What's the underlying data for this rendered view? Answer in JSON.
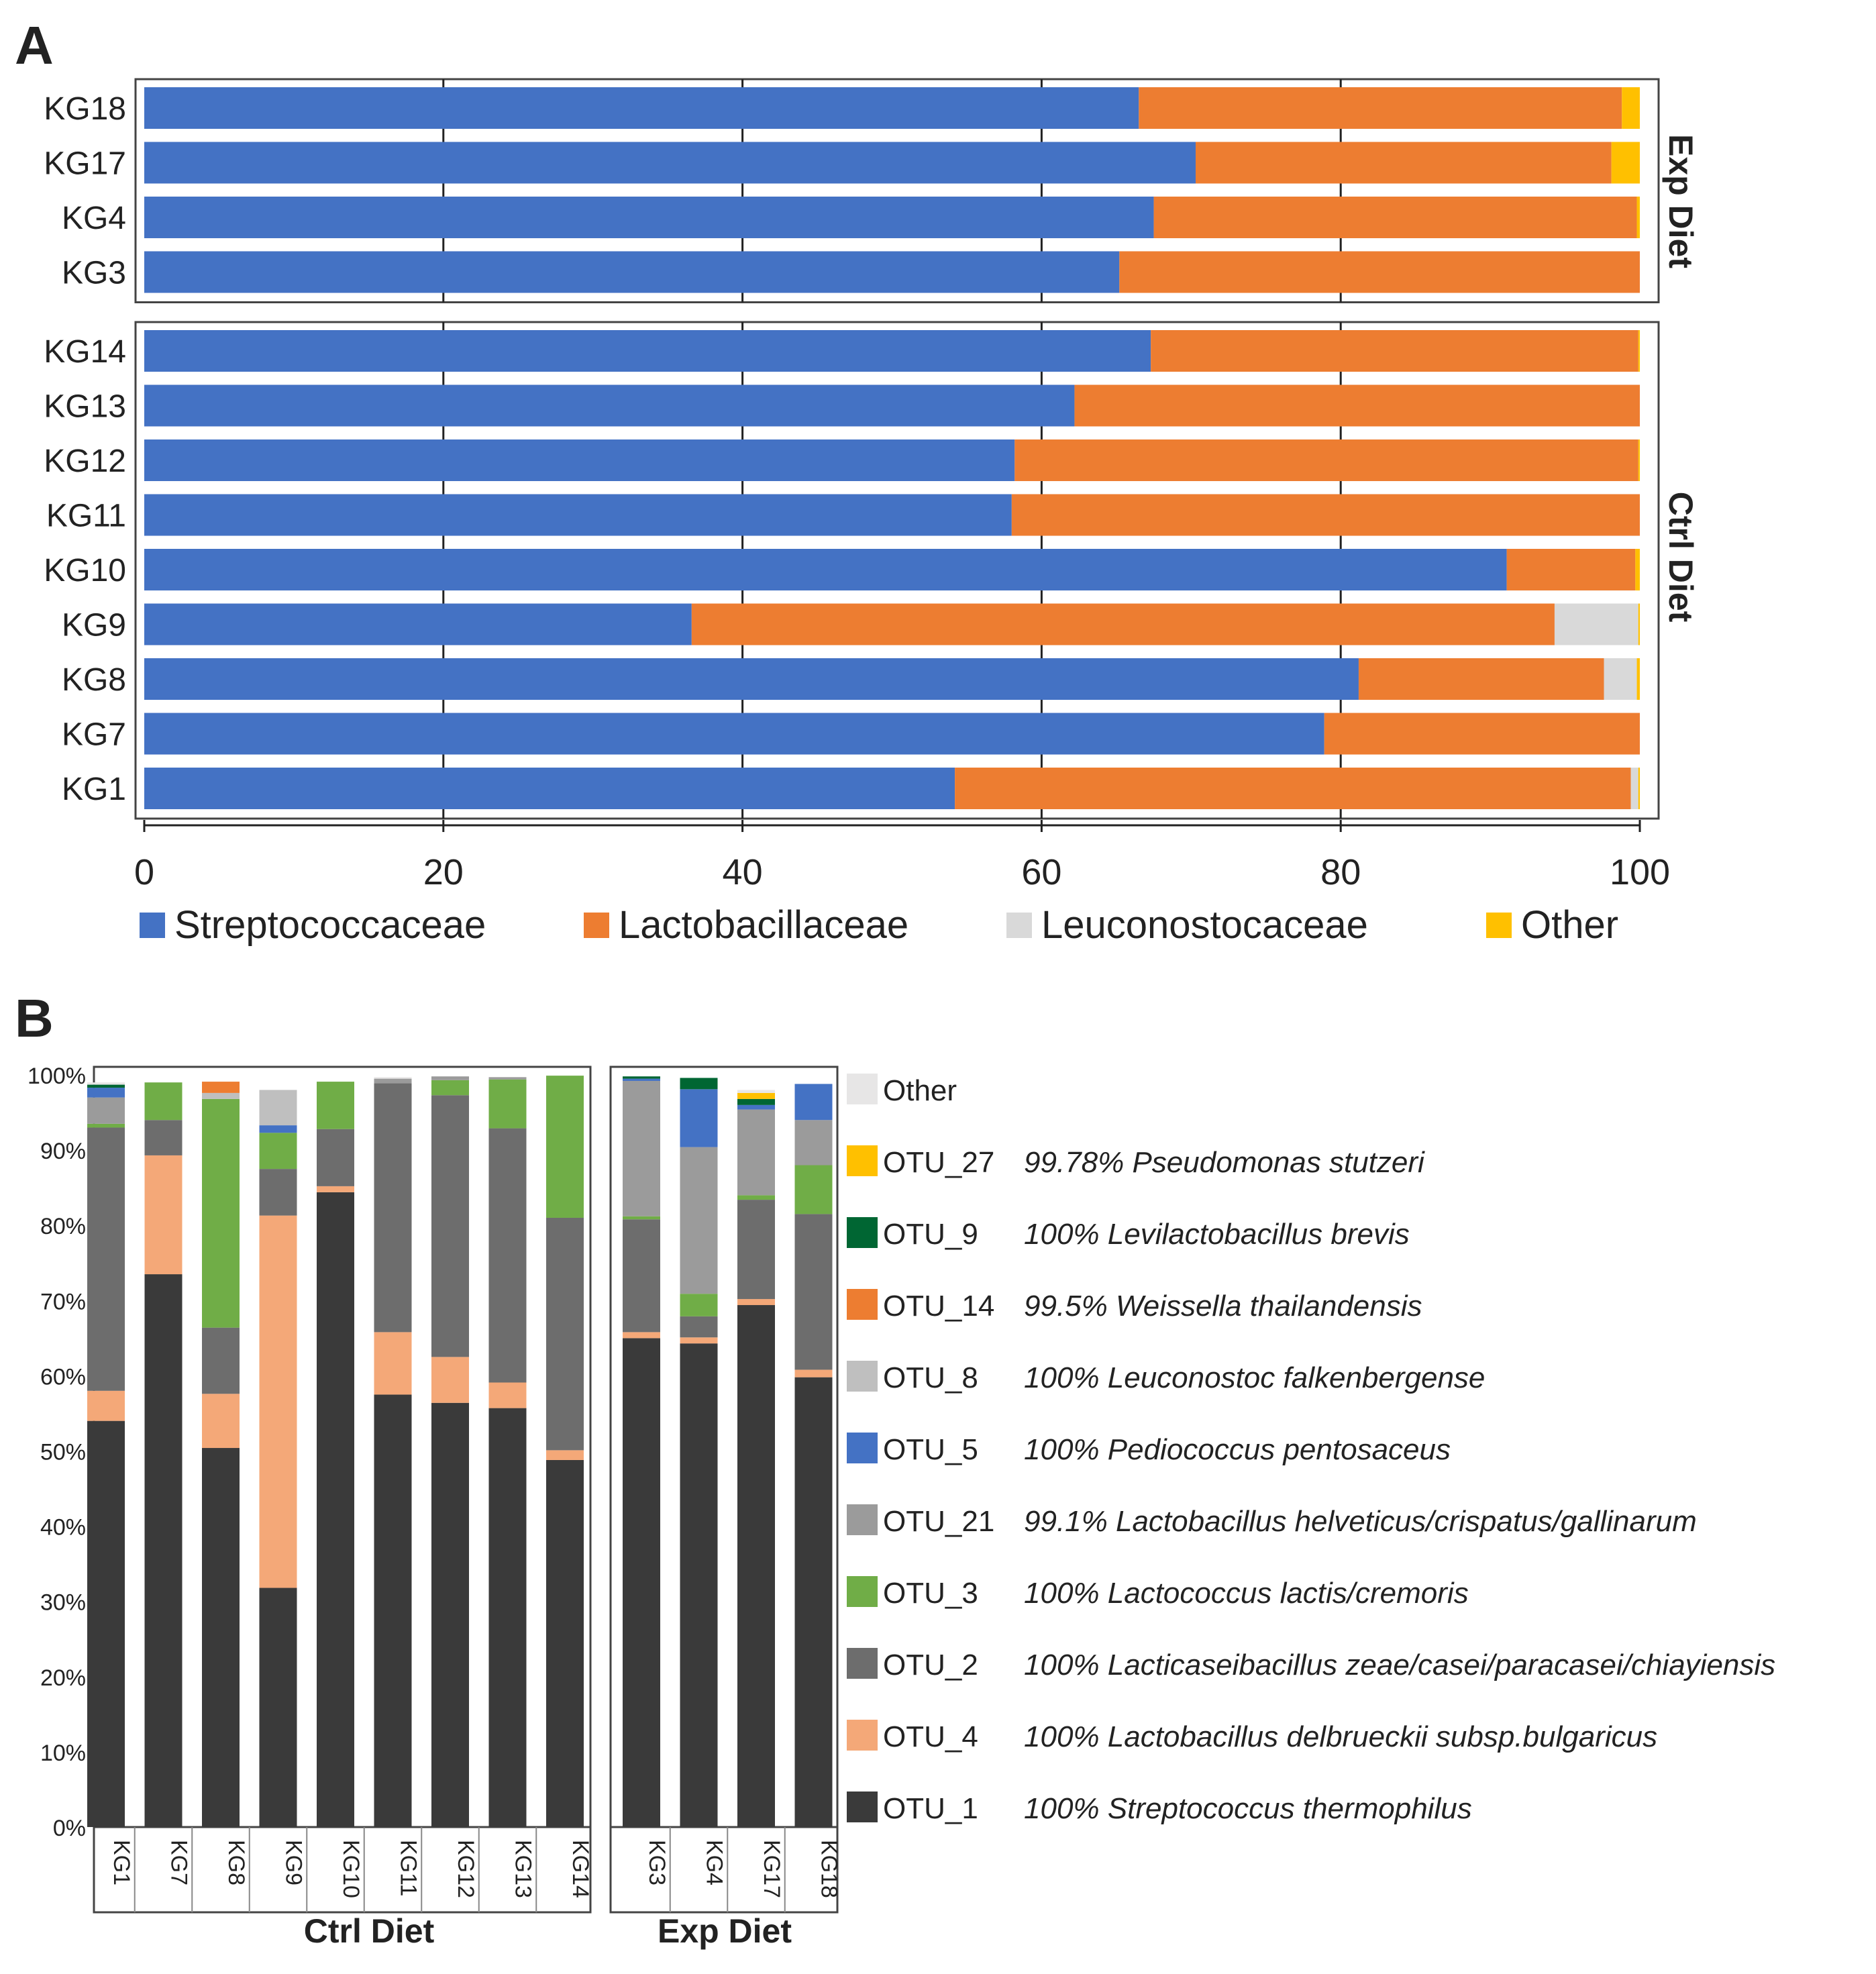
{
  "panel_a": {
    "letter": "A",
    "facet_labels": [
      "Exp Diet",
      "Ctrl  Diet"
    ],
    "axis_ticks": [
      "0",
      "20",
      "40",
      "60",
      "80",
      "100"
    ],
    "legend": [
      {
        "label": "Streptococcaceae",
        "color": "#4472C4"
      },
      {
        "label": "Lactobacillaceae",
        "color": "#ED7D31"
      },
      {
        "label": "Leuconostocaceae",
        "color": "#D9D9D9"
      },
      {
        "label": "Other",
        "color": "#FFC000"
      }
    ]
  },
  "panel_b": {
    "letter": "B",
    "y_ticks": [
      "0%",
      "10%",
      "20%",
      "30%",
      "40%",
      "50%",
      "60%",
      "70%",
      "80%",
      "90%",
      "100%"
    ],
    "group_labels": [
      "Ctrl  Diet",
      "Exp Diet"
    ],
    "legend": [
      {
        "otu": "Other",
        "species": "",
        "color": "#E7E6E6"
      },
      {
        "otu": "OTU_27",
        "species": "99.78% Pseudomonas stutzeri",
        "color": "#FFC000"
      },
      {
        "otu": "OTU_9",
        "species": "100% Levilactobacillus brevis",
        "color": "#006633"
      },
      {
        "otu": "OTU_14",
        "species": "99.5% Weissella thailandensis",
        "color": "#ED7D31"
      },
      {
        "otu": "OTU_8",
        "species": "100% Leuconostoc falkenbergense",
        "color": "#BFBFBF"
      },
      {
        "otu": "OTU_5",
        "species": "100% Pediococcus pentosaceus",
        "color": "#4472C4"
      },
      {
        "otu": "OTU_21",
        "species": "99.1% Lactobacillus helveticus/crispatus/gallinarum",
        "color": "#9B9B9B"
      },
      {
        "otu": "OTU_3",
        "species": "100% Lactococcus lactis/cremoris",
        "color": "#70AD47"
      },
      {
        "otu": "OTU_2",
        "species": "100% Lacticaseibacillus zeae/casei/paracasei/chiayiensis",
        "color": "#6D6D6D"
      },
      {
        "otu": "OTU_4",
        "species": "100% Lactobacillus delbrueckii subsp.bulgaricus",
        "color": "#F4A878"
      },
      {
        "otu": "OTU_1",
        "species": "100% Streptococcus thermophilus",
        "color": "#3A3A3A"
      }
    ]
  },
  "chart_data": [
    {
      "type": "bar",
      "orientation": "horizontal",
      "stacked": true,
      "title": "A",
      "xlim": [
        0,
        100
      ],
      "series_names": [
        "Streptococcaceae",
        "Lactobacillaceae",
        "Leuconostocaceae",
        "Other"
      ],
      "facets": [
        {
          "name": "Exp Diet",
          "samples": [
            {
              "label": "KG18",
              "values": [
                66.5,
                32.3,
                0.0,
                1.2
              ]
            },
            {
              "label": "KG17",
              "values": [
                70.3,
                27.8,
                0.0,
                1.9
              ]
            },
            {
              "label": "KG4",
              "values": [
                67.5,
                32.3,
                0.0,
                0.2
              ]
            },
            {
              "label": "KG3",
              "values": [
                65.2,
                34.8,
                0.0,
                0.0
              ]
            }
          ]
        },
        {
          "name": "Ctrl  Diet",
          "samples": [
            {
              "label": "KG14",
              "values": [
                67.3,
                32.6,
                0.0,
                0.1
              ]
            },
            {
              "label": "KG13",
              "values": [
                62.2,
                37.8,
                0.0,
                0.0
              ]
            },
            {
              "label": "KG12",
              "values": [
                58.2,
                41.7,
                0.0,
                0.1
              ]
            },
            {
              "label": "KG11",
              "values": [
                58.0,
                42.0,
                0.0,
                0.0
              ]
            },
            {
              "label": "KG10",
              "values": [
                91.1,
                8.6,
                0.0,
                0.3
              ]
            },
            {
              "label": "KG9",
              "values": [
                36.6,
                57.7,
                5.6,
                0.1
              ]
            },
            {
              "label": "KG8",
              "values": [
                81.2,
                16.4,
                2.2,
                0.2
              ]
            },
            {
              "label": "KG7",
              "values": [
                78.9,
                21.1,
                0.0,
                0.0
              ]
            },
            {
              "label": "KG1",
              "values": [
                54.2,
                45.2,
                0.5,
                0.1
              ]
            }
          ]
        }
      ]
    },
    {
      "type": "bar",
      "orientation": "vertical",
      "stacked": true,
      "title": "B",
      "ylabel": "",
      "ylim": [
        0,
        100
      ],
      "series_order_bottom_to_top": [
        "OTU_1",
        "OTU_4",
        "OTU_2",
        "OTU_3",
        "OTU_21",
        "OTU_5",
        "OTU_8",
        "OTU_14",
        "OTU_9",
        "OTU_27",
        "Other"
      ],
      "groups": [
        {
          "name": "Ctrl  Diet",
          "samples": [
            {
              "label": "KG1",
              "values": [
                54,
                4,
                35,
                0.5,
                3.5,
                1.3,
                0,
                0,
                0.4,
                0,
                0.3
              ]
            },
            {
              "label": "KG7",
              "values": [
                73.5,
                15.8,
                4.7,
                5,
                0,
                0,
                0,
                0,
                0,
                0,
                0
              ]
            },
            {
              "label": "KG8",
              "values": [
                50.4,
                7.2,
                8.8,
                30.4,
                0,
                0,
                0.8,
                1.5,
                0,
                0,
                0
              ]
            },
            {
              "label": "KG9",
              "values": [
                31.8,
                49.5,
                6.2,
                4.8,
                0,
                1,
                4.7,
                0,
                0,
                0,
                0
              ]
            },
            {
              "label": "KG10",
              "values": [
                84.4,
                0.8,
                7.6,
                6.3,
                0,
                0,
                0,
                0,
                0,
                0,
                0
              ]
            },
            {
              "label": "KG11",
              "values": [
                57.5,
                8.3,
                33.1,
                0,
                0.6,
                0,
                0,
                0,
                0,
                0,
                0.2
              ]
            },
            {
              "label": "KG12",
              "values": [
                56.4,
                6.1,
                34.8,
                2,
                0.5,
                0,
                0,
                0,
                0,
                0,
                0
              ]
            },
            {
              "label": "KG13",
              "values": [
                55.7,
                3.4,
                33.8,
                6.5,
                0.3,
                0,
                0,
                0,
                0,
                0,
                0
              ]
            },
            {
              "label": "KG14",
              "values": [
                48.8,
                1.3,
                30.9,
                18.9,
                0,
                0,
                0,
                0,
                0,
                0,
                0
              ]
            }
          ]
        },
        {
          "name": "Exp Diet",
          "samples": [
            {
              "label": "KG3",
              "values": [
                65,
                0.8,
                15,
                0.4,
                18,
                0.3,
                0,
                0,
                0.3,
                0,
                0
              ]
            },
            {
              "label": "KG4",
              "values": [
                64.3,
                0.8,
                2.8,
                3,
                19.5,
                7.7,
                0,
                0,
                1.5,
                0,
                0
              ]
            },
            {
              "label": "KG17",
              "values": [
                69.4,
                0.8,
                13.2,
                0.6,
                11.4,
                0.6,
                0,
                0,
                0.8,
                0.8,
                0.4
              ]
            },
            {
              "label": "KG18",
              "values": [
                59.8,
                1,
                20.7,
                6.5,
                6,
                4.8,
                0,
                0,
                0,
                0,
                0
              ]
            }
          ]
        }
      ]
    }
  ]
}
